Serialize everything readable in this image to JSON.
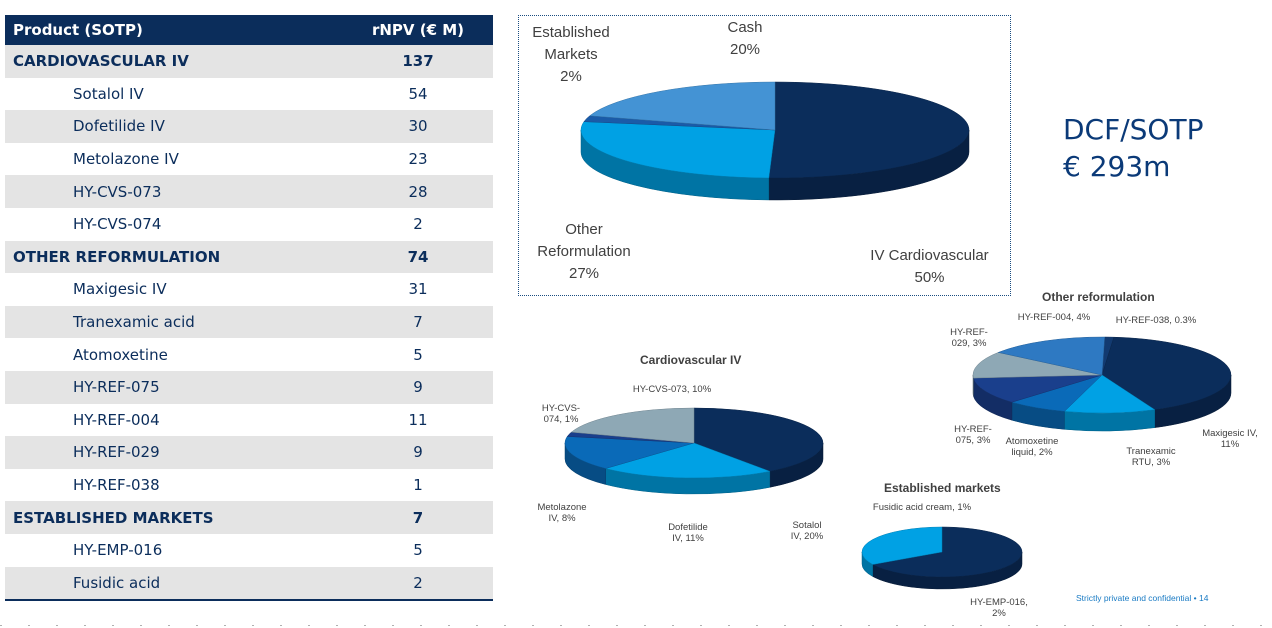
{
  "table": {
    "header": {
      "product": "Product (SOTP)",
      "value": "rNPV (€ M)"
    },
    "rows": [
      {
        "type": "cat",
        "name": "CARDIOVASCULAR IV",
        "value": "137"
      },
      {
        "type": "item",
        "name": "Sotalol IV",
        "value": "54"
      },
      {
        "type": "item",
        "name": "Dofetilide IV",
        "value": "30"
      },
      {
        "type": "item",
        "name": "Metolazone IV",
        "value": "23"
      },
      {
        "type": "item",
        "name": "HY-CVS-073",
        "value": "28"
      },
      {
        "type": "item",
        "name": "HY-CVS-074",
        "value": "2"
      },
      {
        "type": "cat",
        "name": "OTHER REFORMULATION",
        "value": "74"
      },
      {
        "type": "item",
        "name": "Maxigesic IV",
        "value": "31"
      },
      {
        "type": "item",
        "name": "Tranexamic acid",
        "value": "7"
      },
      {
        "type": "item",
        "name": "Atomoxetine",
        "value": "5"
      },
      {
        "type": "item",
        "name": "HY-REF-075",
        "value": "9"
      },
      {
        "type": "item",
        "name": "HY-REF-004",
        "value": "11"
      },
      {
        "type": "item",
        "name": "HY-REF-029",
        "value": "9"
      },
      {
        "type": "item",
        "name": "HY-REF-038",
        "value": "1"
      },
      {
        "type": "cat",
        "name": "ESTABLISHED MARKETS",
        "value": "7"
      },
      {
        "type": "item",
        "name": "HY-EMP-016",
        "value": "5"
      },
      {
        "type": "item",
        "name": "Fusidic acid",
        "value": "2"
      }
    ]
  },
  "dcf": {
    "line1": "DCF/SOTP",
    "line2": "€ 293m"
  },
  "footer": "Strictly private and confidential • 14",
  "chart_data": [
    {
      "type": "pie",
      "title": "",
      "slices": [
        {
          "label_lines": [
            "IV Cardiovascular",
            "50%"
          ],
          "value": 50,
          "color": "#0b2d5b"
        },
        {
          "label_lines": [
            "Other",
            "Reformulation",
            "27%"
          ],
          "value": 27,
          "color": "#00a1e4"
        },
        {
          "label_lines": [
            "Established",
            "Markets",
            "2%"
          ],
          "value": 2,
          "color": "#1a5ba8"
        },
        {
          "label_lines": [
            "Cash",
            "20%"
          ],
          "value": 20,
          "color": "#4493d4"
        }
      ]
    },
    {
      "type": "pie",
      "title": "Cardiovascular IV",
      "slices": [
        {
          "label_lines": [
            "Sotalol",
            "IV, 20%"
          ],
          "value": 20,
          "color": "#0b2d5b"
        },
        {
          "label_lines": [
            "Dofetilide",
            "IV, 11%"
          ],
          "value": 11,
          "color": "#00a1e4"
        },
        {
          "label_lines": [
            "Metolazone",
            "IV, 8%"
          ],
          "value": 8,
          "color": "#0a6ab8"
        },
        {
          "label_lines": [
            "HY-CVS-",
            "074, 1%"
          ],
          "value": 1,
          "color": "#1a3f8c"
        },
        {
          "label_lines": [
            "HY-CVS-073, 10%"
          ],
          "value": 10,
          "color": "#8ea8b5"
        }
      ]
    },
    {
      "type": "pie",
      "title": "Other reformulation",
      "slices": [
        {
          "label_lines": [
            "HY-REF-038, 0.3%"
          ],
          "value": 0.3,
          "color": "#123a70"
        },
        {
          "label_lines": [
            "Maxigesic IV,",
            "11%"
          ],
          "value": 11,
          "color": "#0b2d5b"
        },
        {
          "label_lines": [
            "Tranexamic",
            "RTU, 3%"
          ],
          "value": 3,
          "color": "#00a1e4"
        },
        {
          "label_lines": [
            "Atomoxetine",
            "liquid, 2%"
          ],
          "value": 2,
          "color": "#0a6ab8"
        },
        {
          "label_lines": [
            "HY-REF-",
            "075, 3%"
          ],
          "value": 3,
          "color": "#1a3f8c"
        },
        {
          "label_lines": [
            "HY-REF-",
            "029, 3%"
          ],
          "value": 3,
          "color": "#8ea8b5"
        },
        {
          "label_lines": [
            "HY-REF-004, 4%"
          ],
          "value": 4,
          "color": "#2e79c2"
        }
      ]
    },
    {
      "type": "pie",
      "title": "Established markets",
      "slices": [
        {
          "label_lines": [
            "HY-EMP-016,",
            "2%"
          ],
          "value": 2,
          "color": "#0b2d5b"
        },
        {
          "label_lines": [
            "Fusidic acid cream, 1%"
          ],
          "value": 1,
          "color": "#00a1e4"
        }
      ]
    }
  ]
}
